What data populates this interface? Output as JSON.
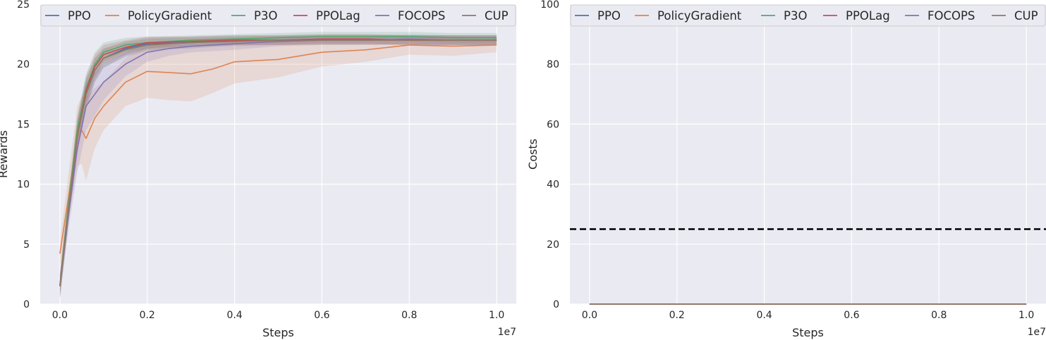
{
  "chart_data": [
    {
      "type": "line",
      "xlabel": "Steps",
      "ylabel": "Rewards",
      "x_offset_label": "1e7",
      "xlim": [
        -0.045,
        1.045
      ],
      "ylim": [
        0,
        25
      ],
      "xticks": [
        0.0,
        0.2,
        0.4,
        0.6,
        0.8,
        1.0
      ],
      "xtick_labels": [
        "0.0",
        "0.2",
        "0.4",
        "0.6",
        "0.8",
        "1.0"
      ],
      "yticks": [
        0,
        5,
        10,
        15,
        20,
        25
      ],
      "ytick_labels": [
        "0",
        "5",
        "10",
        "15",
        "20",
        "25"
      ],
      "grid": true,
      "legend_position": "top",
      "shaded_bands": true,
      "series": [
        {
          "name": "PPO",
          "color": "#4c72b0",
          "x": [
            0,
            0.02,
            0.04,
            0.06,
            0.08,
            0.1,
            0.15,
            0.2,
            0.3,
            0.4,
            0.5,
            0.6,
            0.7,
            0.8,
            0.9,
            1.0
          ],
          "y": [
            1.5,
            8.0,
            14.0,
            17.5,
            19.5,
            20.5,
            21.3,
            21.7,
            21.8,
            22.0,
            22.0,
            22.1,
            22.1,
            22.0,
            22.0,
            22.0
          ],
          "band": [
            1.0,
            1.0,
            1.5,
            1.3,
            1.0,
            0.8,
            0.6,
            0.5,
            0.5,
            0.4,
            0.4,
            0.4,
            0.4,
            0.4,
            0.4,
            0.4
          ]
        },
        {
          "name": "PolicyGradient",
          "color": "#dd8452",
          "x": [
            0,
            0.02,
            0.04,
            0.05,
            0.06,
            0.08,
            0.1,
            0.15,
            0.2,
            0.25,
            0.3,
            0.35,
            0.4,
            0.5,
            0.6,
            0.7,
            0.8,
            0.9,
            1.0
          ],
          "y": [
            4.2,
            9.0,
            14.0,
            14.5,
            13.8,
            15.5,
            16.5,
            18.5,
            19.4,
            19.3,
            19.2,
            19.6,
            20.2,
            20.4,
            21.0,
            21.2,
            21.6,
            21.5,
            21.6
          ],
          "band": [
            1.0,
            2.0,
            2.5,
            2.8,
            3.5,
            2.5,
            2.0,
            2.0,
            2.2,
            2.3,
            2.3,
            2.0,
            1.8,
            1.5,
            1.2,
            1.0,
            0.8,
            0.8,
            0.6
          ]
        },
        {
          "name": "P3O",
          "color": "#55a868",
          "x": [
            0,
            0.02,
            0.04,
            0.06,
            0.08,
            0.1,
            0.15,
            0.2,
            0.3,
            0.4,
            0.5,
            0.6,
            0.7,
            0.8,
            0.9,
            1.0
          ],
          "y": [
            1.5,
            8.5,
            14.5,
            18.0,
            20.0,
            21.0,
            21.6,
            21.8,
            22.0,
            22.1,
            22.2,
            22.3,
            22.3,
            22.3,
            22.2,
            22.2
          ],
          "band": [
            1.0,
            1.0,
            1.3,
            1.2,
            1.0,
            0.8,
            0.6,
            0.5,
            0.4,
            0.4,
            0.4,
            0.4,
            0.4,
            0.4,
            0.4,
            0.4
          ]
        },
        {
          "name": "PPOLag",
          "color": "#c44e52",
          "x": [
            0,
            0.02,
            0.04,
            0.06,
            0.08,
            0.1,
            0.15,
            0.2,
            0.3,
            0.4,
            0.5,
            0.6,
            0.7,
            0.8,
            0.9,
            1.0
          ],
          "y": [
            1.5,
            8.0,
            14.0,
            17.8,
            19.8,
            20.8,
            21.4,
            21.8,
            21.9,
            22.0,
            22.0,
            22.1,
            22.1,
            22.0,
            22.0,
            22.0
          ],
          "band": [
            1.0,
            1.0,
            1.3,
            1.2,
            1.0,
            0.8,
            0.6,
            0.5,
            0.4,
            0.4,
            0.4,
            0.4,
            0.4,
            0.4,
            0.4,
            0.4
          ]
        },
        {
          "name": "FOCOPS",
          "color": "#8172b3",
          "x": [
            0,
            0.02,
            0.04,
            0.06,
            0.08,
            0.1,
            0.15,
            0.2,
            0.25,
            0.3,
            0.4,
            0.5,
            0.6,
            0.7,
            0.8,
            0.9,
            1.0
          ],
          "y": [
            1.5,
            7.5,
            13.0,
            16.5,
            17.5,
            18.5,
            20.0,
            21.0,
            21.3,
            21.5,
            21.7,
            21.9,
            22.0,
            22.0,
            22.1,
            22.0,
            22.0
          ],
          "band": [
            1.0,
            1.2,
            2.0,
            2.0,
            1.8,
            1.5,
            1.0,
            0.8,
            0.6,
            0.5,
            0.5,
            0.4,
            0.4,
            0.4,
            0.4,
            0.4,
            0.4
          ]
        },
        {
          "name": "CUP",
          "color": "#937860",
          "x": [
            0,
            0.02,
            0.04,
            0.06,
            0.08,
            0.1,
            0.15,
            0.2,
            0.3,
            0.4,
            0.5,
            0.6,
            0.7,
            0.8,
            0.9,
            1.0
          ],
          "y": [
            1.5,
            8.0,
            14.0,
            17.5,
            19.5,
            20.5,
            21.2,
            21.6,
            21.8,
            21.9,
            22.0,
            22.0,
            22.0,
            22.0,
            22.0,
            22.0
          ],
          "band": [
            1.0,
            1.0,
            1.3,
            1.2,
            1.0,
            0.8,
            0.6,
            0.5,
            0.4,
            0.4,
            0.4,
            0.4,
            0.4,
            0.4,
            0.4,
            0.4
          ]
        }
      ]
    },
    {
      "type": "line",
      "xlabel": "Steps",
      "ylabel": "Costs",
      "x_offset_label": "1e7",
      "xlim": [
        -0.045,
        1.045
      ],
      "ylim": [
        0,
        100
      ],
      "xticks": [
        0.0,
        0.2,
        0.4,
        0.6,
        0.8,
        1.0
      ],
      "xtick_labels": [
        "0.0",
        "0.2",
        "0.4",
        "0.6",
        "0.8",
        "1.0"
      ],
      "yticks": [
        0,
        20,
        40,
        60,
        80,
        100
      ],
      "ytick_labels": [
        "0",
        "20",
        "40",
        "60",
        "80",
        "100"
      ],
      "grid": true,
      "legend_position": "top",
      "threshold": {
        "y": 25,
        "style": "dashed",
        "color": "#000000"
      },
      "series": [
        {
          "name": "PPO",
          "color": "#4c72b0",
          "x": [
            0,
            1.0
          ],
          "y": [
            0,
            0
          ]
        },
        {
          "name": "PolicyGradient",
          "color": "#dd8452",
          "x": [
            0,
            1.0
          ],
          "y": [
            0,
            0
          ]
        },
        {
          "name": "P3O",
          "color": "#55a868",
          "x": [
            0,
            1.0
          ],
          "y": [
            0,
            0
          ]
        },
        {
          "name": "PPOLag",
          "color": "#c44e52",
          "x": [
            0,
            1.0
          ],
          "y": [
            0,
            0
          ]
        },
        {
          "name": "FOCOPS",
          "color": "#8172b3",
          "x": [
            0,
            1.0
          ],
          "y": [
            0,
            0
          ]
        },
        {
          "name": "CUP",
          "color": "#937860",
          "x": [
            0,
            1.0
          ],
          "y": [
            0,
            0
          ]
        }
      ]
    }
  ]
}
